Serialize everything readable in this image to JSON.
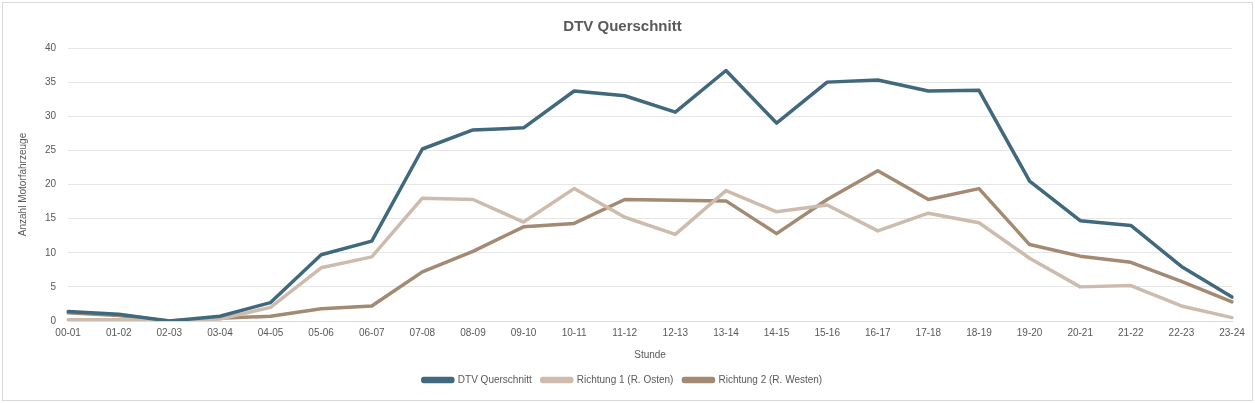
{
  "chart_data": {
    "type": "line",
    "title": "DTV Querschnitt",
    "xlabel": "Stunde",
    "ylabel": "Anzahl Motorfahrzeuge",
    "categories": [
      "00-01",
      "01-02",
      "02-03",
      "03-04",
      "04-05",
      "05-06",
      "06-07",
      "07-08",
      "08-09",
      "09-10",
      "10-11",
      "11-12",
      "12-13",
      "13-14",
      "14-15",
      "15-16",
      "16-17",
      "17-18",
      "18-19",
      "19-20",
      "20-21",
      "21-22",
      "22-23",
      "23-24"
    ],
    "series": [
      {
        "name": "DTV Querschnitt",
        "color": "#40697d",
        "values": [
          1.4,
          1.0,
          0,
          0.7,
          2.7,
          9.7,
          11.7,
          25.2,
          28,
          28.3,
          33.7,
          33,
          30.6,
          36.7,
          29,
          35,
          35.3,
          33.7,
          33.8,
          20.5,
          14.7,
          14,
          8,
          3.5
        ]
      },
      {
        "name": "Richtung 1 (R. Osten)",
        "color": "#cdbcad",
        "values": [
          0.2,
          0.2,
          0,
          0.3,
          2,
          7.8,
          9.4,
          18,
          17.8,
          14.5,
          19.4,
          15.2,
          12.7,
          19.1,
          16,
          17,
          13.2,
          15.8,
          14.4,
          9.2,
          5,
          5.2,
          2.2,
          0.5
        ]
      },
      {
        "name": "Richtung 2 (R. Westen)",
        "color": "#a38a72",
        "values": [
          1.2,
          0.8,
          0,
          0.4,
          0.7,
          1.8,
          2.2,
          7.2,
          10.2,
          13.8,
          14.3,
          17.8,
          17.7,
          17.6,
          12.8,
          17.8,
          22,
          17.8,
          19.4,
          11.2,
          9.5,
          8.6,
          5.8,
          2.8
        ]
      }
    ],
    "ylim": [
      0,
      40
    ],
    "yticks": [
      0,
      5,
      10,
      15,
      20,
      25,
      30,
      35,
      40
    ],
    "grid": "y",
    "legend": "bottom",
    "marker": "none",
    "line_style": "solid"
  }
}
